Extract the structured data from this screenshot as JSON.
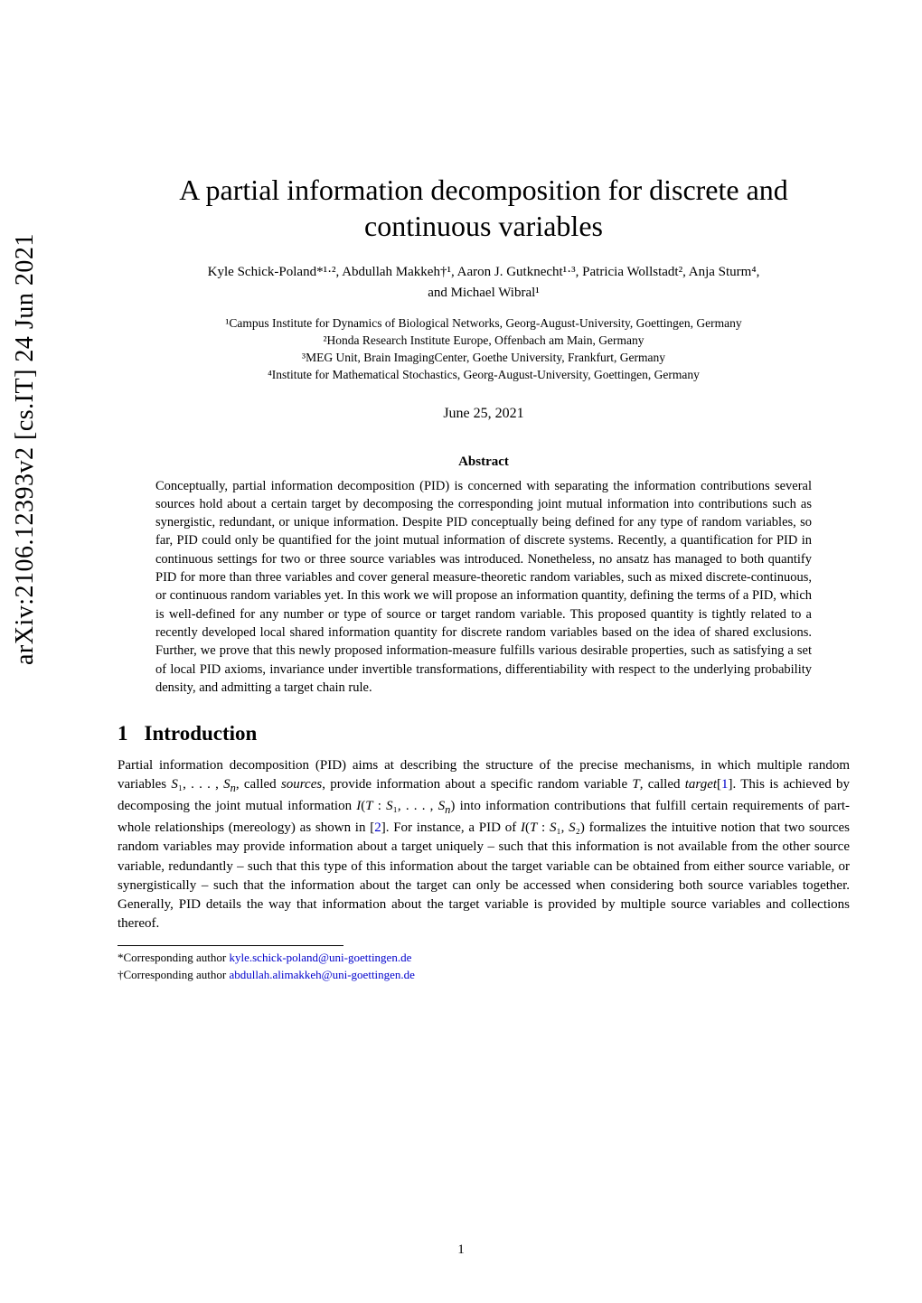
{
  "arxiv": {
    "id": "arXiv:2106.12393v2 [cs.IT] 24 Jun 2021"
  },
  "title": "A partial information decomposition for discrete and continuous variables",
  "authors_line1": "Kyle Schick-Poland*¹·², Abdullah Makkeh†¹, Aaron J. Gutknecht¹·³, Patricia Wollstadt², Anja Sturm⁴,",
  "authors_line2": "and Michael Wibral¹",
  "affiliations": {
    "a1": "¹Campus Institute for Dynamics of Biological Networks, Georg-August-University, Goettingen, Germany",
    "a2": "²Honda Research Institute Europe, Offenbach am Main, Germany",
    "a3": "³MEG Unit, Brain ImagingCenter, Goethe University, Frankfurt, Germany",
    "a4": "⁴Institute for Mathematical Stochastics, Georg-August-University, Goettingen, Germany"
  },
  "date": "June 25, 2021",
  "abstract_heading": "Abstract",
  "abstract_text": "Conceptually, partial information decomposition (PID) is concerned with separating the information contributions several sources hold about a certain target by decomposing the corresponding joint mutual information into contributions such as synergistic, redundant, or unique information. Despite PID conceptually being defined for any type of random variables, so far, PID could only be quantified for the joint mutual information of discrete systems. Recently, a quantification for PID in continuous settings for two or three source variables was introduced. Nonetheless, no ansatz has managed to both quantify PID for more than three variables and cover general measure-theoretic random variables, such as mixed discrete-continuous, or continuous random variables yet. In this work we will propose an information quantity, defining the terms of a PID, which is well-defined for any number or type of source or target random variable. This proposed quantity is tightly related to a recently developed local shared information quantity for discrete random variables based on the idea of shared exclusions. Further, we prove that this newly proposed information-measure fulfills various desirable properties, such as satisfying a set of local PID axioms, invariance under invertible transformations, differentiability with respect to the underlying probability density, and admitting a target chain rule.",
  "section": {
    "number": "1",
    "title": "Introduction"
  },
  "intro_para_html": "Partial information decomposition (PID) aims at describing the structure of the precise mechanisms, in which multiple random variables <span class=\"italic\">S</span>₁, . . . , <span class=\"italic\">S<sub>n</sub></span>, called <span class=\"italic\">sources</span>, provide information about a specific random variable <span class=\"italic\">T</span>, called <span class=\"italic\">target</span>[<span class=\"cite\">1</span>]. This is achieved by decomposing the joint mutual information <span class=\"italic\">I</span>(<span class=\"italic\">T</span> : <span class=\"italic\">S</span>₁, . . . , <span class=\"italic\">S<sub>n</sub></span>) into information contributions that fulfill certain requirements of part-whole relationships (mereology) as shown in [<span class=\"cite\">2</span>]. For instance, a PID of <span class=\"italic\">I</span>(<span class=\"italic\">T</span> : <span class=\"italic\">S</span>₁, <span class=\"italic\">S</span>₂) formalizes the intuitive notion that two sources random variables may provide information about a target uniquely – such that this information is not available from the other source variable, redundantly – such that this type of this information about the target variable can be obtained from either source variable, or synergistically – such that the information about the target can only be accessed when considering both source variables together. Generally, PID details the way that information about the target variable is provided by multiple source variables and collections thereof.",
  "footnotes": {
    "f1_prefix": "*Corresponding author ",
    "f1_email": "kyle.schick-poland@uni-goettingen.de",
    "f2_prefix": "†Corresponding author ",
    "f2_email": "abdullah.alimakkeh@uni-goettingen.de"
  },
  "page_number": "1",
  "colors": {
    "text": "#000000",
    "background": "#ffffff",
    "link": "#0000cc"
  }
}
